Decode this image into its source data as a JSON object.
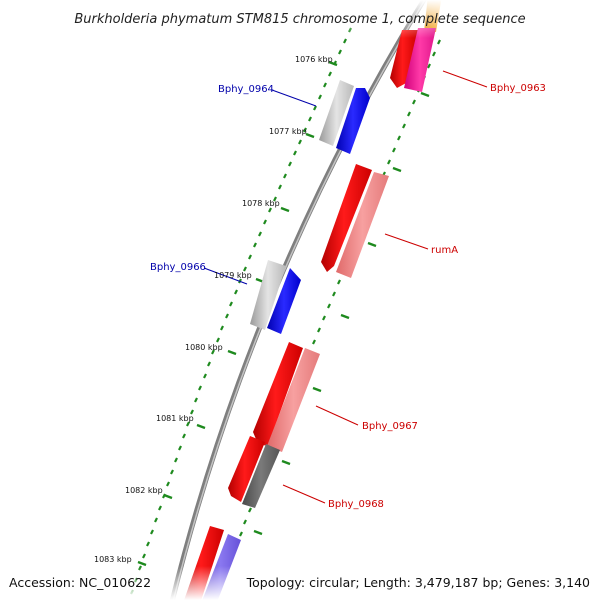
{
  "title": "Burkholderia phymatum STM815 chromosome 1, complete sequence",
  "footer": {
    "accession": "Accession: NC_010622",
    "stats": "Topology: circular; Length: 3,479,187 bp; Genes: 3,140"
  },
  "colors": {
    "backbone": "#7f7f7f",
    "tick_dots": "#1e8a1e",
    "label_blue": "#0000aa",
    "label_red": "#cc0000"
  },
  "kbp_labels": [
    "1076 kbp",
    "1077 kbp",
    "1078 kbp",
    "1079 kbp",
    "1080 kbp",
    "1081 kbp",
    "1082 kbp",
    "1083 kbp"
  ],
  "gene_labels": [
    {
      "name": "Bphy_0963",
      "color": "#cc0000"
    },
    {
      "name": "Bphy_0964",
      "color": "#0000aa"
    },
    {
      "name": "rumA",
      "color": "#cc0000"
    },
    {
      "name": "Bphy_0966",
      "color": "#0000aa"
    },
    {
      "name": "Bphy_0967",
      "color": "#cc0000"
    },
    {
      "name": "Bphy_0968",
      "color": "#cc0000"
    }
  ]
}
